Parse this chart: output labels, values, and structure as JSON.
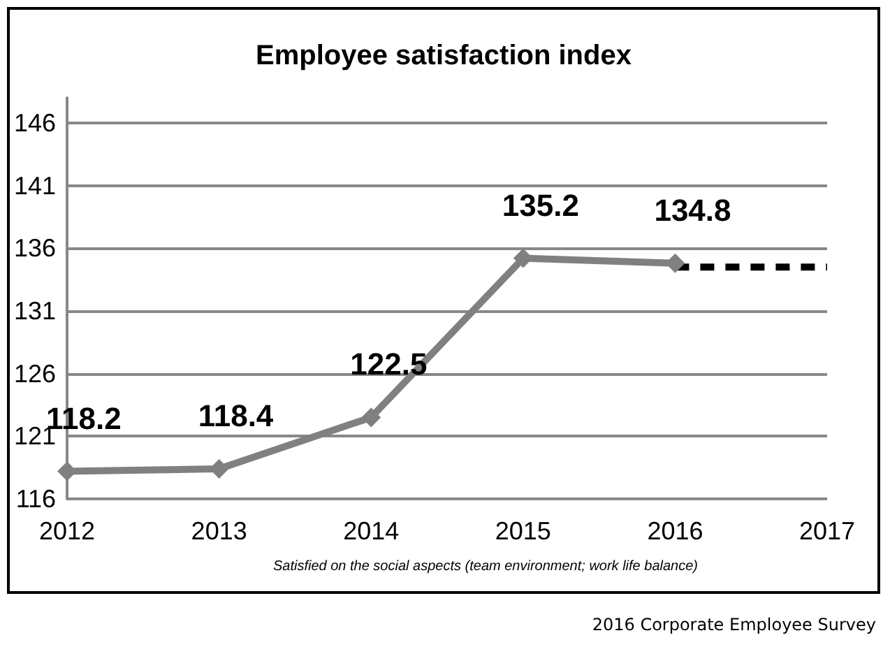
{
  "chart_data": {
    "type": "line",
    "title": "Employee satisfaction index",
    "x": [
      2012,
      2013,
      2014,
      2015,
      2016
    ],
    "series": [
      {
        "color": "#808080",
        "values": [
          118.2,
          118.4,
          122.5,
          135.2,
          134.8
        ],
        "value_labels": [
          "118.2",
          "118.4",
          "122.5",
          "135.2",
          "134.8"
        ],
        "marker": "diamond"
      },
      {
        "color": "#000000",
        "x": [
          2016,
          2017
        ],
        "values": [
          134.5,
          134.5
        ],
        "marker": "none",
        "line_style": "dashed"
      }
    ],
    "xlim": [
      2012,
      2017
    ],
    "xticks": [
      2012,
      2013,
      2014,
      2015,
      2016,
      2017
    ],
    "ylim": [
      116,
      148
    ],
    "yticks": [
      116,
      121,
      126,
      131,
      136,
      141,
      146
    ],
    "grid": "y",
    "annotations": [
      "Satisfied on the social aspects (team environment; work life balance)",
      "2016 Corporate Employee Survey"
    ]
  }
}
